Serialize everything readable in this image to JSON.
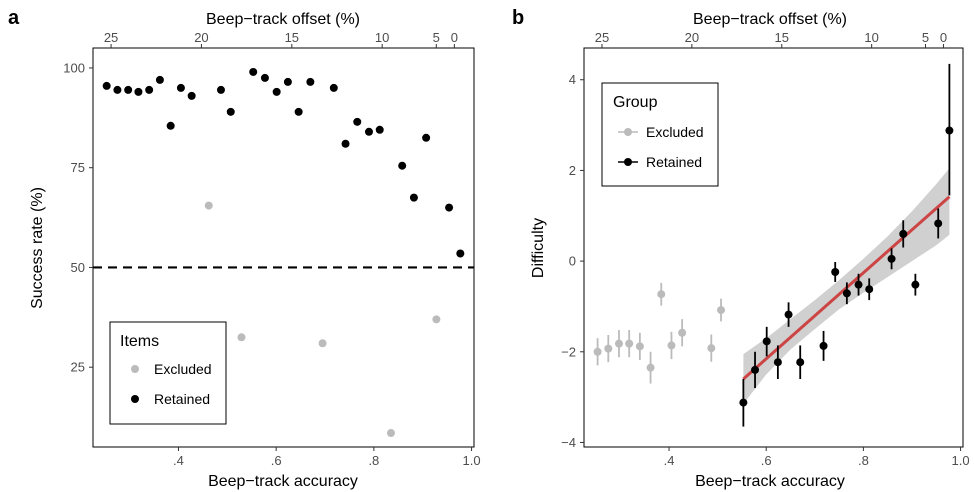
{
  "chart_data": [
    {
      "panel_label": "a",
      "type": "scatter",
      "xlabel": "Beep−track accuracy",
      "ylabel": "Success rate (%)",
      "x2label": "Beep−track offset (%)",
      "xlim": [
        0.225,
        1.005
      ],
      "ylim": [
        5,
        105
      ],
      "x_ticks": [
        0.4,
        0.6,
        0.8,
        1.0
      ],
      "x_tick_labels": [
        ".4",
        ".6",
        ".8",
        "1.0"
      ],
      "y_ticks": [
        25,
        50,
        75,
        100
      ],
      "y_tick_labels": [
        "25",
        "50",
        "75",
        "100"
      ],
      "x2_ticks": [
        0.262,
        0.447,
        0.632,
        0.817,
        0.9278,
        0.9648
      ],
      "x2_tick_labels": [
        "25",
        "20",
        "15",
        "10",
        "5",
        "0"
      ],
      "reference_line": {
        "y": 50,
        "style": "dashed"
      },
      "legend": {
        "title": "Items",
        "position": "bottom-left",
        "entries": [
          "Excluded",
          "Retained"
        ]
      },
      "colors": {
        "Excluded": "#bbbbbb",
        "Retained": "#000000"
      },
      "series": [
        {
          "name": "Excluded",
          "points": [
            [
              0.462,
              65.5
            ],
            [
              0.529,
              32.5
            ],
            [
              0.695,
              31.0
            ],
            [
              0.835,
              8.5
            ],
            [
              0.928,
              37.0
            ]
          ]
        },
        {
          "name": "Retained",
          "points": [
            [
              0.253,
              95.5
            ],
            [
              0.275,
              94.5
            ],
            [
              0.297,
              94.5
            ],
            [
              0.318,
              94.0
            ],
            [
              0.34,
              94.5
            ],
            [
              0.362,
              97.0
            ],
            [
              0.384,
              85.5
            ],
            [
              0.405,
              95.0
            ],
            [
              0.427,
              93.0
            ],
            [
              0.487,
              94.5
            ],
            [
              0.507,
              89.0
            ],
            [
              0.553,
              99.0
            ],
            [
              0.577,
              97.5
            ],
            [
              0.601,
              94.0
            ],
            [
              0.624,
              96.5
            ],
            [
              0.646,
              89.0
            ],
            [
              0.67,
              96.5
            ],
            [
              0.718,
              95.0
            ],
            [
              0.742,
              81.0
            ],
            [
              0.766,
              86.5
            ],
            [
              0.79,
              84.0
            ],
            [
              0.812,
              84.5
            ],
            [
              0.858,
              75.5
            ],
            [
              0.882,
              67.5
            ],
            [
              0.907,
              82.5
            ],
            [
              0.954,
              65.0
            ],
            [
              0.977,
              53.5
            ]
          ]
        }
      ]
    },
    {
      "panel_label": "b",
      "type": "scatter",
      "xlabel": "Beep−track accuracy",
      "ylabel": "Difficulty",
      "x2label": "Beep−track offset (%)",
      "xlim": [
        0.225,
        1.005
      ],
      "ylim": [
        -4.1,
        4.7
      ],
      "x_ticks": [
        0.4,
        0.6,
        0.8,
        1.0
      ],
      "x_tick_labels": [
        ".4",
        ".6",
        ".8",
        "1.0"
      ],
      "y_ticks": [
        -4,
        -2,
        0,
        2,
        4
      ],
      "y_tick_labels": [
        "−4",
        "−2",
        "0",
        "2",
        "4"
      ],
      "x2_ticks": [
        0.262,
        0.447,
        0.632,
        0.817,
        0.9278,
        0.9648
      ],
      "x2_tick_labels": [
        "25",
        "20",
        "15",
        "10",
        "5",
        "0"
      ],
      "legend": {
        "title": "Group",
        "position": "top-left",
        "entries": [
          "Excluded",
          "Retained"
        ]
      },
      "colors": {
        "Excluded": "#bbbbbb",
        "Retained": "#000000",
        "fit": "#cc4444",
        "band": "#aaaaaa"
      },
      "fit_line": {
        "x": [
          0.553,
          0.977
        ],
        "y": [
          -2.6,
          1.42
        ]
      },
      "confidence_band": {
        "x": [
          0.553,
          0.6,
          0.65,
          0.7,
          0.75,
          0.8,
          0.85,
          0.9,
          0.95,
          0.977
        ],
        "lower": [
          -3.15,
          -2.5,
          -1.95,
          -1.5,
          -1.06,
          -0.7,
          -0.35,
          0.0,
          0.35,
          0.58
        ],
        "upper": [
          -2.05,
          -1.7,
          -1.28,
          -0.86,
          -0.42,
          0.05,
          0.55,
          1.1,
          1.7,
          2.05
        ]
      },
      "series": [
        {
          "name": "Excluded",
          "points": [
            {
              "x": 0.253,
              "y": -2.0,
              "lo": -2.3,
              "hi": -1.7
            },
            {
              "x": 0.275,
              "y": -1.93,
              "lo": -2.23,
              "hi": -1.63
            },
            {
              "x": 0.297,
              "y": -1.82,
              "lo": -2.12,
              "hi": -1.52
            },
            {
              "x": 0.318,
              "y": -1.82,
              "lo": -2.12,
              "hi": -1.52
            },
            {
              "x": 0.34,
              "y": -1.88,
              "lo": -2.18,
              "hi": -1.58
            },
            {
              "x": 0.362,
              "y": -2.35,
              "lo": -2.7,
              "hi": -2.0
            },
            {
              "x": 0.384,
              "y": -0.73,
              "lo": -0.98,
              "hi": -0.48
            },
            {
              "x": 0.405,
              "y": -1.86,
              "lo": -2.16,
              "hi": -1.56
            },
            {
              "x": 0.427,
              "y": -1.58,
              "lo": -1.88,
              "hi": -1.28
            },
            {
              "x": 0.487,
              "y": -1.92,
              "lo": -2.22,
              "hi": -1.62
            },
            {
              "x": 0.507,
              "y": -1.08,
              "lo": -1.33,
              "hi": -0.83
            }
          ]
        },
        {
          "name": "Retained",
          "points": [
            {
              "x": 0.553,
              "y": -3.12,
              "lo": -3.65,
              "hi": -2.6
            },
            {
              "x": 0.577,
              "y": -2.4,
              "lo": -2.8,
              "hi": -2.0
            },
            {
              "x": 0.601,
              "y": -1.77,
              "lo": -2.1,
              "hi": -1.45
            },
            {
              "x": 0.624,
              "y": -2.23,
              "lo": -2.6,
              "hi": -1.86
            },
            {
              "x": 0.646,
              "y": -1.18,
              "lo": -1.45,
              "hi": -0.91
            },
            {
              "x": 0.67,
              "y": -2.23,
              "lo": -2.6,
              "hi": -1.86
            },
            {
              "x": 0.718,
              "y": -1.87,
              "lo": -2.2,
              "hi": -1.54
            },
            {
              "x": 0.742,
              "y": -0.24,
              "lo": -0.46,
              "hi": -0.02
            },
            {
              "x": 0.766,
              "y": -0.71,
              "lo": -0.95,
              "hi": -0.47
            },
            {
              "x": 0.79,
              "y": -0.52,
              "lo": -0.76,
              "hi": -0.28
            },
            {
              "x": 0.812,
              "y": -0.62,
              "lo": -0.86,
              "hi": -0.38
            },
            {
              "x": 0.858,
              "y": 0.05,
              "lo": -0.18,
              "hi": 0.28
            },
            {
              "x": 0.882,
              "y": 0.6,
              "lo": 0.3,
              "hi": 0.9
            },
            {
              "x": 0.907,
              "y": -0.52,
              "lo": -0.76,
              "hi": -0.28
            },
            {
              "x": 0.954,
              "y": 0.83,
              "lo": 0.5,
              "hi": 1.16
            },
            {
              "x": 0.977,
              "y": 2.88,
              "lo": 1.45,
              "hi": 4.35
            }
          ]
        }
      ]
    }
  ]
}
